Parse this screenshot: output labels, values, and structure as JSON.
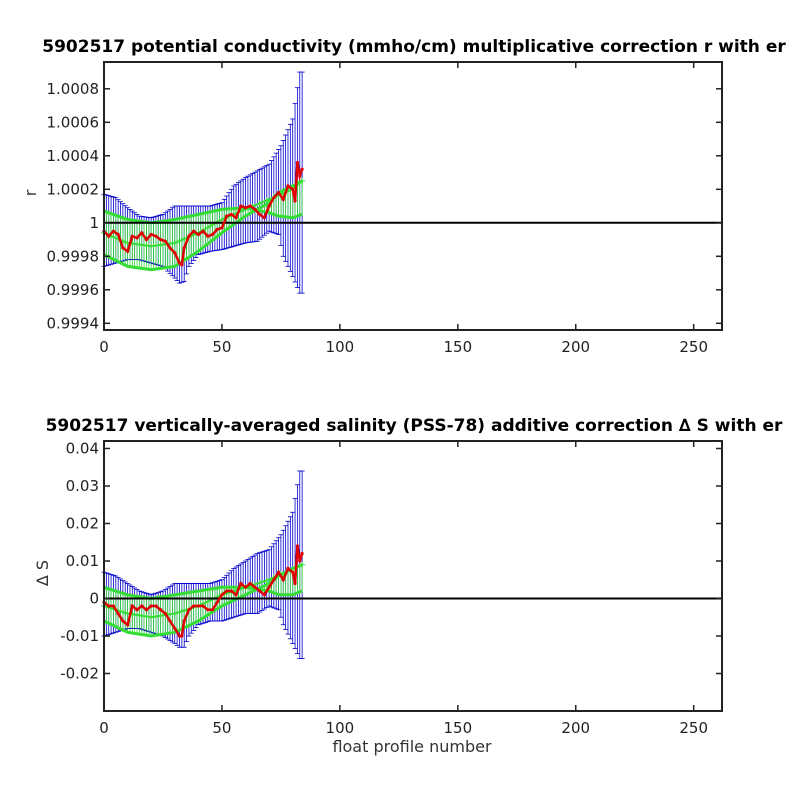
{
  "chart_data": [
    {
      "type": "line",
      "title": "5902517 potential conductivity (mmho/cm) multiplicative correction r with er",
      "xlabel": "",
      "ylabel": "r",
      "xlim": [
        0,
        262
      ],
      "ylim": [
        0.99936,
        1.00096
      ],
      "xticks": [
        0,
        50,
        100,
        150,
        200,
        250
      ],
      "xtick_labels": [
        "0",
        "50",
        "100",
        "150",
        "200",
        "250"
      ],
      "yticks": [
        0.9994,
        0.9996,
        0.9998,
        1.0,
        1.0002,
        1.0004,
        1.0006,
        1.0008
      ],
      "ytick_labels": [
        "0.9994",
        "0.9996",
        "0.9998",
        "1",
        "1.0002",
        "1.0004",
        "1.0006",
        "1.0008"
      ],
      "reference_line": 1.0,
      "colors": {
        "correction": "#e00000",
        "fit": "#33dd33",
        "error": "#0000cc",
        "reference": "#000000"
      },
      "series": [
        {
          "role": "correction",
          "x": [
            0,
            2,
            4,
            6,
            8,
            10,
            12,
            14,
            16,
            18,
            20,
            22,
            24,
            26,
            28,
            30,
            32,
            33,
            34,
            36,
            38,
            40,
            42,
            44,
            46,
            48,
            50,
            52,
            54,
            56,
            58,
            60,
            62,
            64,
            66,
            68,
            70,
            72,
            74,
            76,
            78,
            80,
            81,
            82,
            83,
            84
          ],
          "y": [
            0.99995,
            0.99992,
            0.99995,
            0.99993,
            0.99985,
            0.99983,
            0.99992,
            0.99991,
            0.99994,
            0.9999,
            0.99993,
            0.99992,
            0.9999,
            0.99989,
            0.99985,
            0.99982,
            0.99976,
            0.99975,
            0.99985,
            0.99992,
            0.99995,
            0.99993,
            0.99995,
            0.99992,
            0.99993,
            0.99996,
            0.99997,
            1.00004,
            1.00005,
            1.00003,
            1.0001,
            1.00009,
            1.0001,
            1.00008,
            1.00005,
            1.00003,
            1.0001,
            1.00015,
            1.00018,
            1.00014,
            1.00022,
            1.0002,
            1.00013,
            1.00036,
            1.00028,
            1.00032
          ]
        },
        {
          "role": "fit",
          "x": [
            0,
            10,
            20,
            30,
            40,
            50,
            60,
            70,
            80,
            84
          ],
          "y": [
            0.99994,
            0.99988,
            0.99986,
            0.99988,
            0.99994,
            1.00002,
            1.00008,
            1.00014,
            1.0002,
            1.00025
          ]
        },
        {
          "role": "fit-error-upper",
          "x": [
            0,
            10,
            20,
            30,
            40,
            50,
            60,
            70,
            74,
            80,
            84
          ],
          "y": [
            1.00007,
            1.00002,
            1.0,
            1.00002,
            1.00005,
            1.00008,
            1.00009,
            1.00006,
            1.00004,
            1.00003,
            1.00005
          ]
        },
        {
          "role": "fit-error-lower",
          "x": [
            0,
            10,
            20,
            30,
            40,
            50,
            60,
            70,
            74,
            80,
            84
          ],
          "y": [
            0.99981,
            0.99974,
            0.99972,
            0.99974,
            0.99983,
            0.99994,
            1.00004,
            1.00012,
            1.00018,
            1.00022,
            1.00025
          ]
        },
        {
          "role": "error-upper",
          "x": [
            0,
            5,
            10,
            15,
            20,
            25,
            30,
            35,
            40,
            45,
            50,
            55,
            60,
            65,
            70,
            75,
            80,
            83,
            84
          ],
          "y": [
            1.00017,
            1.00015,
            1.00009,
            1.00004,
            1.00003,
            1.00005,
            1.0001,
            1.0001,
            1.0001,
            1.0001,
            1.00012,
            1.00022,
            1.00027,
            1.00031,
            1.00035,
            1.00046,
            1.00062,
            1.0009,
            1.0009
          ]
        },
        {
          "role": "error-lower",
          "x": [
            0,
            5,
            10,
            15,
            20,
            25,
            30,
            32,
            34,
            36,
            40,
            45,
            50,
            55,
            60,
            65,
            70,
            74,
            76,
            80,
            83,
            84
          ],
          "y": [
            0.99974,
            0.99976,
            0.99978,
            0.99978,
            0.99976,
            0.99974,
            0.99967,
            0.99964,
            0.99965,
            0.99974,
            0.99981,
            0.99983,
            0.99984,
            0.99986,
            0.99988,
            0.99989,
            0.99995,
            0.99993,
            0.9998,
            0.99968,
            0.99958,
            0.99958
          ]
        }
      ]
    },
    {
      "type": "line",
      "title": "5902517 vertically-averaged salinity (PSS-78) additive correction ∆ S with er",
      "xlabel": "float profile number",
      "ylabel": "∆ S",
      "xlim": [
        0,
        262
      ],
      "ylim": [
        -0.03,
        0.042
      ],
      "xticks": [
        0,
        50,
        100,
        150,
        200,
        250
      ],
      "xtick_labels": [
        "0",
        "50",
        "100",
        "150",
        "200",
        "250"
      ],
      "yticks": [
        -0.02,
        -0.01,
        0.0,
        0.01,
        0.02,
        0.03,
        0.04
      ],
      "ytick_labels": [
        "-0.02",
        "-0.01",
        "0",
        "0.01",
        "0.02",
        "0.03",
        "0.04"
      ],
      "reference_line": 0.0,
      "colors": {
        "correction": "#e00000",
        "fit": "#33dd33",
        "error": "#0000cc",
        "reference": "#000000"
      },
      "series": [
        {
          "role": "correction",
          "x": [
            0,
            2,
            4,
            6,
            8,
            10,
            12,
            14,
            16,
            18,
            20,
            22,
            24,
            26,
            28,
            30,
            32,
            33,
            34,
            36,
            38,
            40,
            42,
            44,
            46,
            48,
            50,
            52,
            54,
            56,
            58,
            60,
            62,
            64,
            66,
            68,
            70,
            72,
            74,
            76,
            78,
            80,
            81,
            82,
            83,
            84
          ],
          "y": [
            -0.001,
            -0.002,
            -0.002,
            -0.004,
            -0.006,
            -0.007,
            -0.002,
            -0.003,
            -0.002,
            -0.003,
            -0.002,
            -0.002,
            -0.003,
            -0.004,
            -0.006,
            -0.008,
            -0.01,
            -0.01,
            -0.006,
            -0.003,
            -0.002,
            -0.002,
            -0.002,
            -0.003,
            -0.003,
            -0.001,
            0.001,
            0.002,
            0.002,
            0.001,
            0.004,
            0.003,
            0.004,
            0.003,
            0.002,
            0.001,
            0.003,
            0.005,
            0.007,
            0.005,
            0.008,
            0.007,
            0.004,
            0.014,
            0.01,
            0.012
          ]
        },
        {
          "role": "fit",
          "x": [
            0,
            10,
            20,
            30,
            40,
            50,
            60,
            70,
            80,
            84
          ],
          "y": [
            -0.002,
            -0.004,
            -0.005,
            -0.004,
            -0.002,
            0.001,
            0.003,
            0.005,
            0.008,
            0.009
          ]
        },
        {
          "role": "fit-error-upper",
          "x": [
            0,
            10,
            20,
            30,
            40,
            50,
            60,
            70,
            74,
            80,
            84
          ],
          "y": [
            0.003,
            0.001,
            0.0,
            0.001,
            0.002,
            0.003,
            0.003,
            0.002,
            0.001,
            0.001,
            0.002
          ]
        },
        {
          "role": "fit-error-lower",
          "x": [
            0,
            10,
            20,
            30,
            40,
            50,
            60,
            70,
            74,
            80,
            84
          ],
          "y": [
            -0.006,
            -0.009,
            -0.01,
            -0.009,
            -0.006,
            -0.002,
            0.001,
            0.004,
            0.006,
            0.008,
            0.009
          ]
        },
        {
          "role": "error-upper",
          "x": [
            0,
            5,
            10,
            15,
            20,
            25,
            30,
            35,
            40,
            45,
            50,
            55,
            60,
            65,
            70,
            75,
            80,
            83,
            84
          ],
          "y": [
            0.007,
            0.006,
            0.004,
            0.002,
            0.001,
            0.002,
            0.004,
            0.004,
            0.004,
            0.004,
            0.005,
            0.008,
            0.01,
            0.012,
            0.013,
            0.017,
            0.023,
            0.034,
            0.034
          ]
        },
        {
          "role": "error-lower",
          "x": [
            0,
            5,
            10,
            15,
            20,
            25,
            30,
            32,
            34,
            36,
            40,
            45,
            50,
            55,
            60,
            65,
            70,
            74,
            76,
            80,
            83,
            84
          ],
          "y": [
            -0.01,
            -0.009,
            -0.008,
            -0.008,
            -0.009,
            -0.01,
            -0.012,
            -0.013,
            -0.013,
            -0.01,
            -0.007,
            -0.006,
            -0.006,
            -0.005,
            -0.004,
            -0.004,
            -0.002,
            -0.003,
            -0.007,
            -0.012,
            -0.016,
            -0.016
          ]
        }
      ]
    }
  ]
}
